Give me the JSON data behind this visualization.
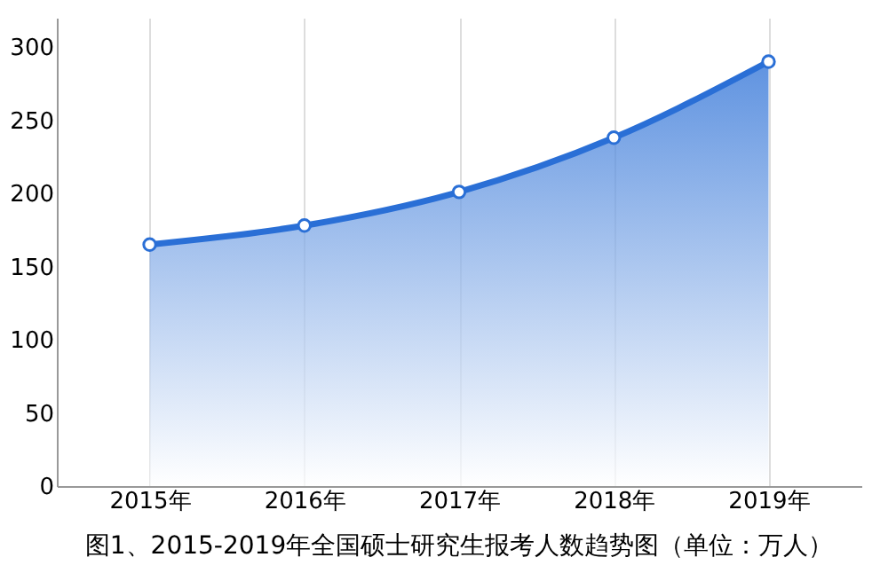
{
  "chart_data": {
    "type": "area",
    "title": "图1、2015-2019年全国硕士研究生报考人数趋势图（单位：万人）",
    "categories": [
      "2015年",
      "2016年",
      "2017年",
      "2018年",
      "2019年"
    ],
    "series": [
      {
        "color": "#2a6fd6",
        "values": [
          165,
          178,
          201,
          238,
          290
        ]
      }
    ],
    "ylim": [
      0,
      320
    ],
    "yticks": [
      0,
      50,
      100,
      150,
      200,
      250,
      300
    ],
    "grid": "x",
    "marker": "circle",
    "line_style": "solid"
  }
}
